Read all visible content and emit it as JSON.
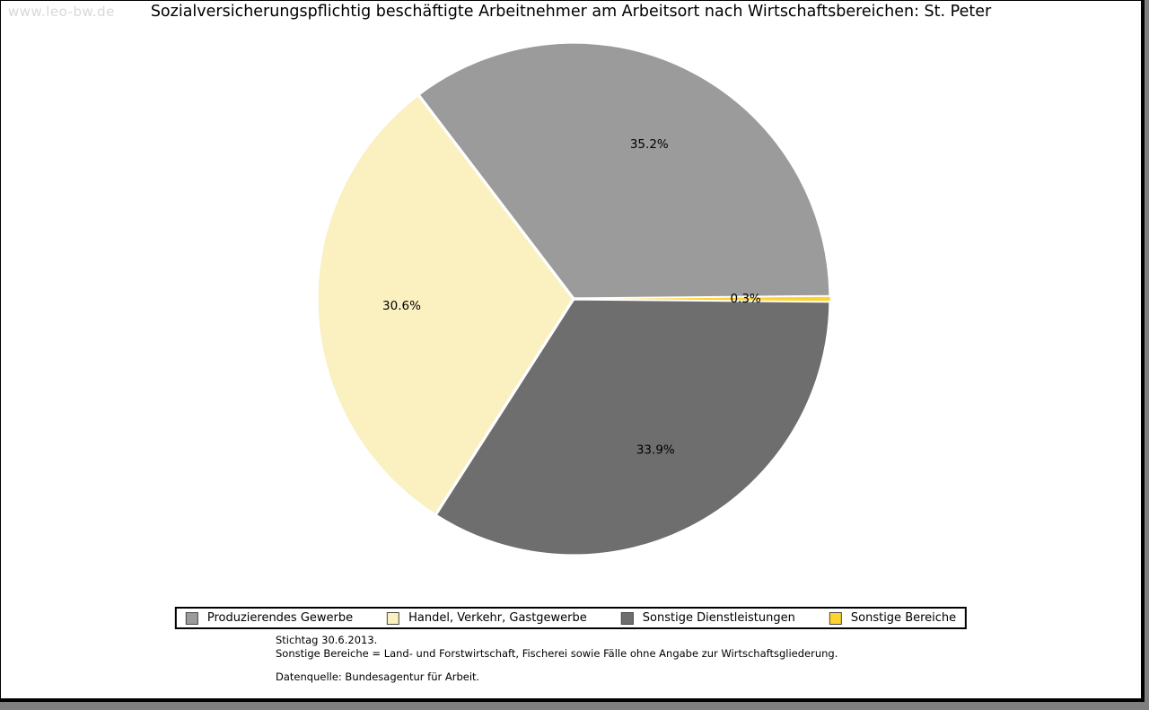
{
  "watermark": "www.leo-bw.de",
  "title": "Sozialversicherungspflichtig beschäftigte Arbeitnehmer am Arbeitsort nach Wirtschaftsbereichen: St. Peter",
  "chart_data": {
    "type": "pie",
    "title": "Sozialversicherungspflichtig beschäftigte Arbeitnehmer am Arbeitsort nach Wirtschaftsbereichen: St. Peter",
    "unit": "percent",
    "start_angle_deg": 0.54,
    "direction": "counterclockwise",
    "label_radius_fraction": 0.67,
    "legend_position": "bottom",
    "slices": [
      {
        "label": "Produzierendes Gewerbe",
        "value": 35.2,
        "display": "35.2%",
        "color": "#9B9B9B"
      },
      {
        "label": "Handel, Verkehr, Gastgewerbe",
        "value": 30.6,
        "display": "30.6%",
        "color": "#FAF0C0"
      },
      {
        "label": "Sonstige Dienstleistungen",
        "value": 33.9,
        "display": "33.9%",
        "color": "#6E6E6E"
      },
      {
        "label": "Sonstige Bereiche",
        "value": 0.3,
        "display": "0.3%",
        "color": "#FFD32E"
      }
    ]
  },
  "notes": {
    "stichtag": "Stichtag 30.6.2013.",
    "definition": "Sonstige Bereiche = Land- und Forstwirtschaft, Fischerei sowie Fälle ohne Angabe zur Wirtschaftsgliederung.",
    "source": "Datenquelle: Bundesagentur für Arbeit."
  }
}
